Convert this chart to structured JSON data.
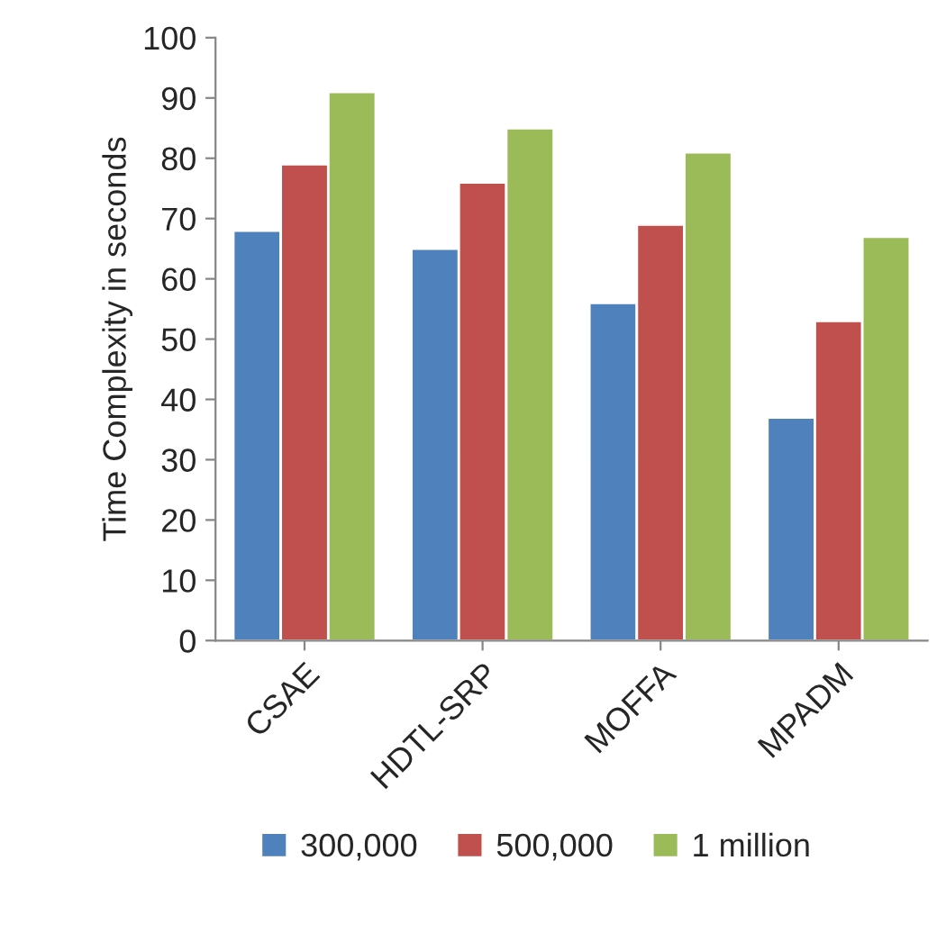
{
  "chart_data": {
    "type": "bar",
    "ylabel": "Time Complexity in seconds",
    "categories": [
      "CSAE",
      "HDTL-SRP",
      "MOFFA",
      "MPADM"
    ],
    "series": [
      {
        "name": "300,000",
        "color": "#4f81bd",
        "values": [
          68,
          65,
          56,
          37
        ]
      },
      {
        "name": "500,000",
        "color": "#c0504d",
        "values": [
          79,
          76,
          69,
          53
        ]
      },
      {
        "name": "1 million",
        "color": "#9bbb59",
        "values": [
          91,
          85,
          81,
          67
        ]
      }
    ],
    "ylim": [
      0,
      100
    ],
    "yticks": [
      0,
      10,
      20,
      30,
      40,
      50,
      60,
      70,
      80,
      90,
      100
    ],
    "grid": false,
    "legend": "bottom"
  }
}
